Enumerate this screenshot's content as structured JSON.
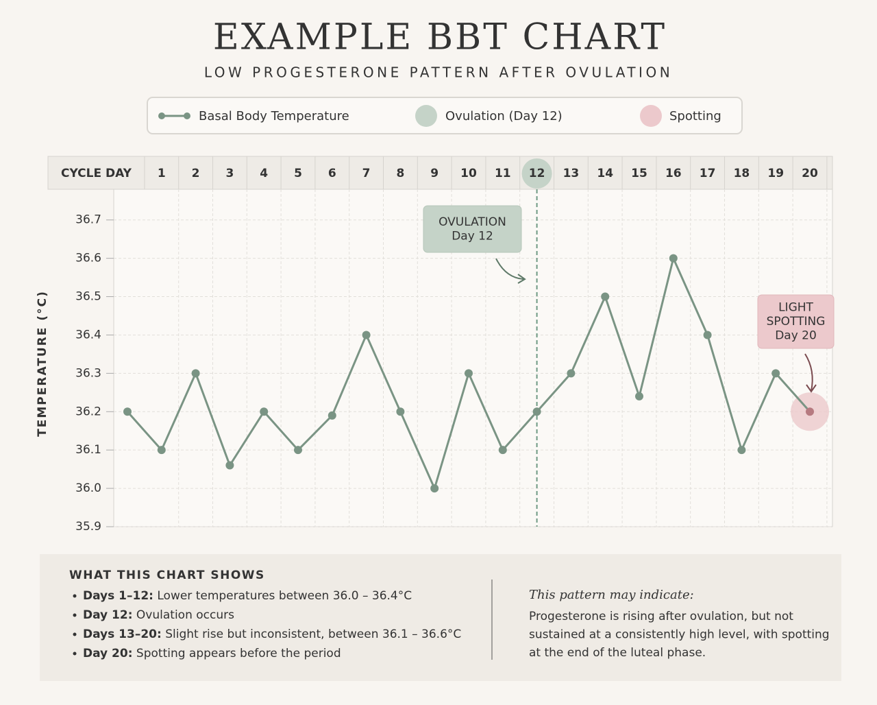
{
  "chart_data": {
    "type": "line",
    "title": "EXAMPLE BBT CHART",
    "subtitle": "LOW PROGESTERONE PATTERN AFTER OVULATION",
    "x_axis_label": "CYCLE DAY",
    "y_axis_label": "TEMPERATURE (°C)",
    "categories": [
      null,
      "1",
      "2",
      "3",
      "4",
      "5",
      "6",
      "7",
      "8",
      "9",
      "10",
      "11",
      "12",
      "13",
      "14",
      "15",
      "16",
      "17",
      "18",
      "19",
      "20"
    ],
    "series": [
      {
        "name": "Basal Body Temperature",
        "color": "#7a9484",
        "values": [
          36.2,
          36.1,
          36.3,
          36.06,
          36.2,
          36.1,
          36.19,
          36.4,
          36.2,
          36.0,
          36.3,
          36.1,
          36.2,
          36.3,
          36.5,
          36.24,
          36.6,
          36.4,
          36.1,
          36.3,
          36.2
        ]
      }
    ],
    "ylim": [
      35.9,
      36.78
    ],
    "yticks": [
      35.9,
      {
        "value": 36,
        "label": "36.0"
      },
      36.1,
      36.2,
      36.3,
      36.4,
      36.5,
      36.6,
      36.7
    ],
    "grid": true,
    "markers": [
      {
        "name": "Ovulation (Day 12)",
        "color": "#c5d3c8",
        "index": 12,
        "annotation": [
          "OVULATION",
          "Day 12"
        ]
      },
      {
        "name": "Spotting",
        "color": "#ecc9cc",
        "index": 20,
        "annotation": [
          "LIGHT",
          "SPOTTING",
          "Day 20"
        ]
      }
    ],
    "notes": {
      "title": "WHAT THIS CHART SHOWS",
      "bullets": [
        {
          "label": "Days 1–12:",
          "text": " Lower temperatures between 36.0 – 36.4°C"
        },
        {
          "label": "Day 12:",
          "text": " Ovulation occurs"
        },
        {
          "label": "Days 13–20:",
          "text": " Slight rise but inconsistent, between 36.1 – 36.6°C"
        },
        {
          "label": "Day 20:",
          "text": " Spotting appears before the period"
        }
      ],
      "aside_title": "This pattern may indicate:",
      "aside_lines": [
        "Progesterone is rising after ovulation, but not",
        "sustained at a consistently high level, with spotting",
        "at the end of the luteal phase."
      ]
    }
  }
}
